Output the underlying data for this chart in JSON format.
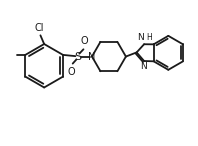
{
  "bg_color": "#ffffff",
  "line_color": "#1a1a1a",
  "line_width": 1.3,
  "font_size": 6.5,
  "fig_width": 1.98,
  "fig_height": 1.46,
  "dpi": 100,
  "xlim": [
    0.0,
    9.5
  ],
  "ylim": [
    1.0,
    7.5
  ]
}
